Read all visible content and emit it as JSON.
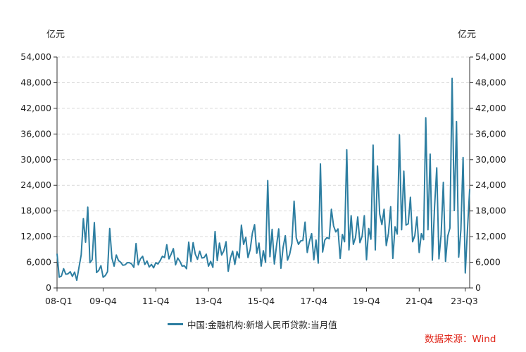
{
  "chart_data": {
    "type": "line",
    "y_unit_left": "亿元",
    "y_unit_right": "亿元",
    "ylim": [
      0,
      54000
    ],
    "yticks": [
      0,
      6000,
      12000,
      18000,
      24000,
      30000,
      36000,
      42000,
      48000,
      54000
    ],
    "ytick_labels": [
      "0",
      "6,000",
      "12,000",
      "18,000",
      "24,000",
      "30,000",
      "36,000",
      "42,000",
      "48,000",
      "54,000"
    ],
    "xticks": [
      "08-Q1",
      "09-Q4",
      "11-Q4",
      "13-Q4",
      "15-Q4",
      "17-Q4",
      "19-Q4",
      "21-Q4",
      "23-Q3"
    ],
    "grid": true,
    "legend_position": "bottom",
    "series": [
      {
        "name": "中国:金融机构:新增人民币贷款:当月值",
        "color": "#2d7ea1",
        "x": [
          "2008-01",
          "2008-02",
          "2008-03",
          "2008-04",
          "2008-05",
          "2008-06",
          "2008-07",
          "2008-08",
          "2008-09",
          "2008-10",
          "2008-11",
          "2008-12",
          "2009-01",
          "2009-02",
          "2009-03",
          "2009-04",
          "2009-05",
          "2009-06",
          "2009-07",
          "2009-08",
          "2009-09",
          "2009-10",
          "2009-11",
          "2009-12",
          "2010-01",
          "2010-02",
          "2010-03",
          "2010-04",
          "2010-05",
          "2010-06",
          "2010-07",
          "2010-08",
          "2010-09",
          "2010-10",
          "2010-11",
          "2010-12",
          "2011-01",
          "2011-02",
          "2011-03",
          "2011-04",
          "2011-05",
          "2011-06",
          "2011-07",
          "2011-08",
          "2011-09",
          "2011-10",
          "2011-11",
          "2011-12",
          "2012-01",
          "2012-02",
          "2012-03",
          "2012-04",
          "2012-05",
          "2012-06",
          "2012-07",
          "2012-08",
          "2012-09",
          "2012-10",
          "2012-11",
          "2012-12",
          "2013-01",
          "2013-02",
          "2013-03",
          "2013-04",
          "2013-05",
          "2013-06",
          "2013-07",
          "2013-08",
          "2013-09",
          "2013-10",
          "2013-11",
          "2013-12",
          "2014-01",
          "2014-02",
          "2014-03",
          "2014-04",
          "2014-05",
          "2014-06",
          "2014-07",
          "2014-08",
          "2014-09",
          "2014-10",
          "2014-11",
          "2014-12",
          "2015-01",
          "2015-02",
          "2015-03",
          "2015-04",
          "2015-05",
          "2015-06",
          "2015-07",
          "2015-08",
          "2015-09",
          "2015-10",
          "2015-11",
          "2015-12",
          "2016-01",
          "2016-02",
          "2016-03",
          "2016-04",
          "2016-05",
          "2016-06",
          "2016-07",
          "2016-08",
          "2016-09",
          "2016-10",
          "2016-11",
          "2016-12",
          "2017-01",
          "2017-02",
          "2017-03",
          "2017-04",
          "2017-05",
          "2017-06",
          "2017-07",
          "2017-08",
          "2017-09",
          "2017-10",
          "2017-11",
          "2017-12",
          "2018-01",
          "2018-02",
          "2018-03",
          "2018-04",
          "2018-05",
          "2018-06",
          "2018-07",
          "2018-08",
          "2018-09",
          "2018-10",
          "2018-11",
          "2018-12",
          "2019-01",
          "2019-02",
          "2019-03",
          "2019-04",
          "2019-05",
          "2019-06",
          "2019-07",
          "2019-08",
          "2019-09",
          "2019-10",
          "2019-11",
          "2019-12",
          "2020-01",
          "2020-02",
          "2020-03",
          "2020-04",
          "2020-05",
          "2020-06",
          "2020-07",
          "2020-08",
          "2020-09",
          "2020-10",
          "2020-11",
          "2020-12",
          "2021-01",
          "2021-02",
          "2021-03",
          "2021-04",
          "2021-05",
          "2021-06",
          "2021-07",
          "2021-08",
          "2021-09",
          "2021-10",
          "2021-11",
          "2021-12",
          "2022-01",
          "2022-02",
          "2022-03",
          "2022-04",
          "2022-05",
          "2022-06",
          "2022-07",
          "2022-08",
          "2022-09",
          "2022-10",
          "2022-11",
          "2022-12",
          "2023-01",
          "2023-02",
          "2023-03",
          "2023-04",
          "2023-05",
          "2023-06",
          "2023-07",
          "2023-08",
          "2023-09"
        ],
        "values": [
          8000,
          2500,
          2800,
          4500,
          3200,
          3300,
          3800,
          2700,
          3700,
          1800,
          4800,
          7700,
          16200,
          10700,
          18900,
          5900,
          6600,
          15300,
          3600,
          4100,
          5200,
          2500,
          2900,
          3800,
          13900,
          7000,
          5100,
          7700,
          6400,
          6000,
          5300,
          5400,
          5900,
          5900,
          5600,
          4800,
          10400,
          5400,
          6800,
          7400,
          5500,
          6300,
          4900,
          5500,
          4700,
          5900,
          5600,
          6400,
          7400,
          7100,
          10100,
          6800,
          7900,
          9200,
          5400,
          7000,
          6200,
          5100,
          5200,
          4500,
          10700,
          6200,
          10600,
          7900,
          6700,
          8600,
          7000,
          7100,
          7900,
          5100,
          6200,
          4800,
          13200,
          6400,
          10500,
          7700,
          8700,
          10800,
          3900,
          7000,
          8600,
          5500,
          8500,
          7000,
          14700,
          10200,
          11800,
          7100,
          9000,
          12800,
          14800,
          8100,
          10500,
          5100,
          8700,
          6000,
          25100,
          7300,
          13700,
          5600,
          9900,
          13800,
          4600,
          9500,
          12200,
          6500,
          7900,
          10400,
          20300,
          11700,
          10200,
          11000,
          11100,
          15400,
          8300,
          10900,
          12700,
          6600,
          11200,
          5800,
          29000,
          8400,
          11200,
          11800,
          11500,
          18400,
          14500,
          13100,
          13800,
          6900,
          12500,
          10800,
          32300,
          8900,
          16900,
          10200,
          11800,
          16600,
          10600,
          12100,
          16900,
          6600,
          13900,
          11400,
          33400,
          8900,
          28500,
          17300,
          14800,
          18400,
          9900,
          12800,
          19000,
          6900,
          14300,
          12600,
          35800,
          13600,
          27300,
          14700,
          15000,
          21200,
          10800,
          12200,
          16600,
          8300,
          12700,
          11300,
          39800,
          13600,
          31300,
          6500,
          18900,
          28100,
          6800,
          12500,
          24700,
          6200,
          12100,
          14000,
          49000,
          18100,
          38900,
          7200,
          13600,
          30500,
          3500,
          13600,
          23100
        ]
      }
    ]
  },
  "source_text": "数据来源：Wind"
}
